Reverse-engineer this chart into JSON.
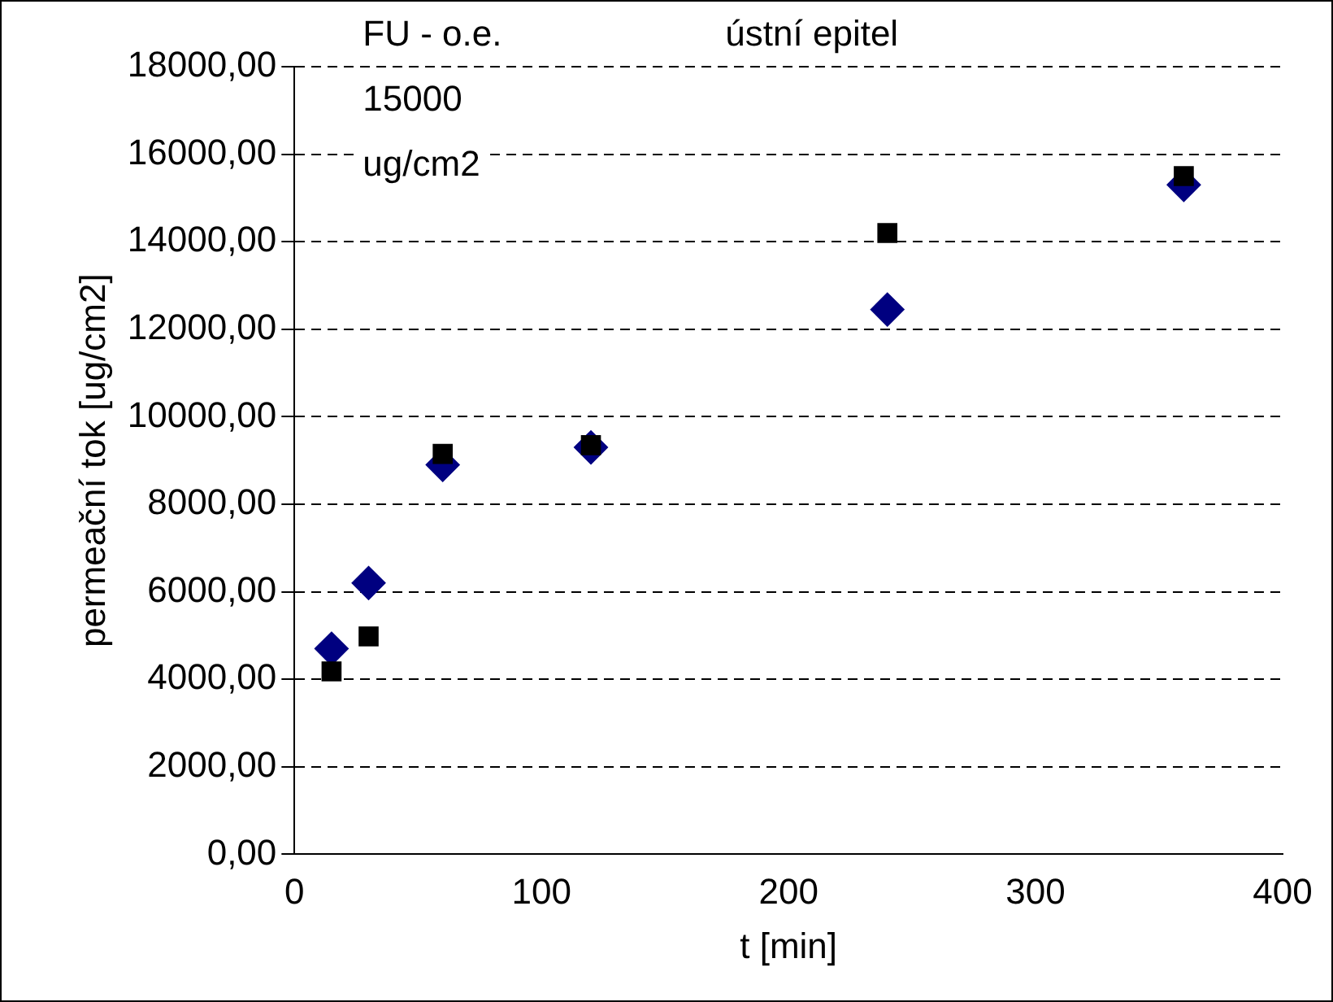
{
  "chart_data": {
    "type": "scatter",
    "xlabel": "t [min]",
    "ylabel": "permeační tok [ug/cm2]",
    "annotations": [
      "FU - o.e.\n15000\nug/cm2",
      "ústní epitel"
    ],
    "series": [
      {
        "color": "#000080",
        "marker": "diamond",
        "x": [
          15,
          30,
          60,
          120,
          240,
          360
        ],
        "values": [
          4700,
          6200,
          8900,
          9300,
          12450,
          15300
        ]
      },
      {
        "color": "#000000",
        "marker": "square",
        "x": [
          15,
          30,
          60,
          120,
          240,
          360
        ],
        "values": [
          4180,
          4980,
          9150,
          9350,
          14200,
          15500
        ]
      }
    ],
    "xlim": [
      0,
      400
    ],
    "xticks": [
      0,
      100,
      200,
      300,
      400
    ],
    "ylim": [
      0,
      18000
    ],
    "yticks": [
      {
        "value": 0,
        "label": "0,00"
      },
      {
        "value": 2000,
        "label": "2000,00"
      },
      {
        "value": 4000,
        "label": "4000,00"
      },
      {
        "value": 6000,
        "label": "6000,00"
      },
      {
        "value": 8000,
        "label": "8000,00"
      },
      {
        "value": 10000,
        "label": "10000,00"
      },
      {
        "value": 12000,
        "label": "12000,00"
      },
      {
        "value": 14000,
        "label": "14000,00"
      },
      {
        "value": 16000,
        "label": "16000,00"
      },
      {
        "value": 18000,
        "label": "18000,00"
      }
    ],
    "grid": "y",
    "legend": false
  }
}
